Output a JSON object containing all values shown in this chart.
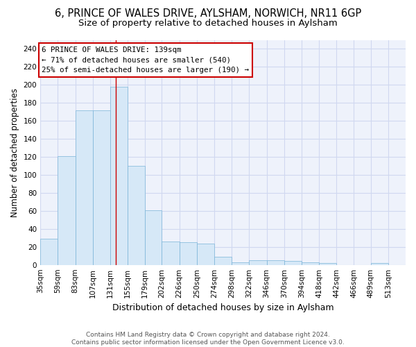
{
  "title": "6, PRINCE OF WALES DRIVE, AYLSHAM, NORWICH, NR11 6GP",
  "subtitle": "Size of property relative to detached houses in Aylsham",
  "xlabel": "Distribution of detached houses by size in Aylsham",
  "ylabel": "Number of detached properties",
  "bar_labels": [
    "35sqm",
    "59sqm",
    "83sqm",
    "107sqm",
    "131sqm",
    "155sqm",
    "179sqm",
    "202sqm",
    "226sqm",
    "250sqm",
    "274sqm",
    "298sqm",
    "322sqm",
    "346sqm",
    "370sqm",
    "394sqm",
    "418sqm",
    "442sqm",
    "466sqm",
    "489sqm",
    "513sqm"
  ],
  "bar_edges": [
    35,
    59,
    83,
    107,
    131,
    155,
    179,
    202,
    226,
    250,
    274,
    298,
    322,
    346,
    370,
    394,
    418,
    442,
    466,
    489,
    513
  ],
  "bar_heights": [
    29,
    121,
    172,
    172,
    198,
    110,
    61,
    26,
    25,
    24,
    9,
    3,
    5,
    5,
    4,
    3,
    2,
    0,
    0,
    2,
    0
  ],
  "bar_color": "#d6e8f7",
  "bar_edge_color": "#7ab4d8",
  "red_line_x": 139,
  "annotation_line1": "6 PRINCE OF WALES DRIVE: 139sqm",
  "annotation_line2": "← 71% of detached houses are smaller (540)",
  "annotation_line3": "25% of semi-detached houses are larger (190) →",
  "annotation_box_color": "#ffffff",
  "annotation_border_color": "#cc0000",
  "ylim": [
    0,
    250
  ],
  "yticks": [
    0,
    20,
    40,
    60,
    80,
    100,
    120,
    140,
    160,
    180,
    200,
    220,
    240
  ],
  "footer_text": "Contains HM Land Registry data © Crown copyright and database right 2024.\nContains public sector information licensed under the Open Government Licence v3.0.",
  "background_color": "#eef2fb",
  "grid_color": "#d0d8f0",
  "title_fontsize": 10.5,
  "subtitle_fontsize": 9.5,
  "ylabel_fontsize": 8.5,
  "xlabel_fontsize": 9,
  "tick_fontsize": 7.5,
  "footer_fontsize": 6.5,
  "ann_fontsize": 7.8
}
